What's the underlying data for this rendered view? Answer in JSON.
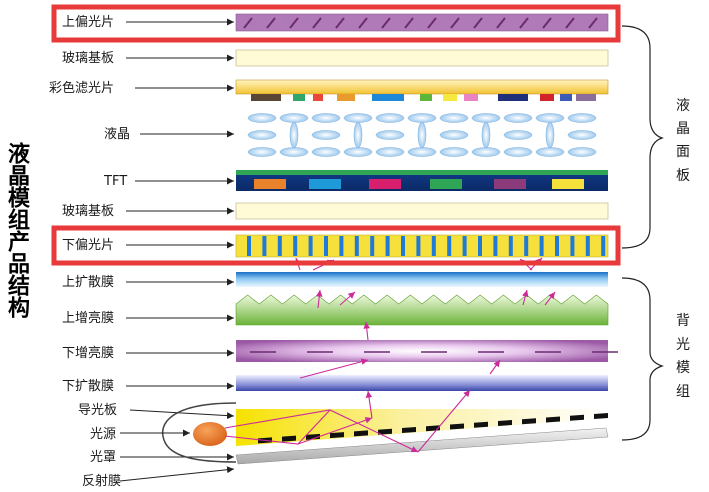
{
  "title": "液晶模组产品结构",
  "layers": [
    {
      "key": "upper_polarizer",
      "label": "上偏光片"
    },
    {
      "key": "glass_top",
      "label": "玻璃基板"
    },
    {
      "key": "color_filter",
      "label": "彩色滤光片"
    },
    {
      "key": "liquid_crystal",
      "label": "液晶"
    },
    {
      "key": "tft",
      "label": "TFT"
    },
    {
      "key": "glass_bottom",
      "label": "玻璃基板"
    },
    {
      "key": "lower_polarizer",
      "label": "下偏光片"
    },
    {
      "key": "upper_diffuser",
      "label": "上扩散膜"
    },
    {
      "key": "upper_brightness",
      "label": "上增亮膜"
    },
    {
      "key": "lower_brightness",
      "label": "下增亮膜"
    },
    {
      "key": "lower_diffuser",
      "label": "下扩散膜"
    },
    {
      "key": "light_guide",
      "label": "导光板"
    },
    {
      "key": "light_source",
      "label": "光源"
    },
    {
      "key": "lamp_cover",
      "label": "光罩"
    },
    {
      "key": "reflector",
      "label": "反射膜"
    }
  ],
  "groups": {
    "lcd_panel": {
      "chars": [
        "液",
        "晶",
        "面",
        "板"
      ]
    },
    "backlight": {
      "chars": [
        "背",
        "光",
        "模",
        "组"
      ]
    }
  },
  "colors": {
    "highlight": "#e83a3a",
    "arrow": "#cc2a9a",
    "upper_polarizer": "#b07ab8",
    "glass": "#fffbd6",
    "diffuser": "#2f8bd8",
    "brightness": "#8cc63f",
    "lower_brightness": "#a569b0",
    "light_source": "#e8731c",
    "cf_strip": [
      "#5a4634",
      "#2fa66a",
      "#e8473a",
      "#e89a2c",
      "#1f87d8",
      "#5cb63a",
      "#f6e83c",
      "#e983c4",
      "#1f2f7a",
      "#d2232a",
      "#3a5bb8",
      "#8b6f9a"
    ],
    "tft_blocks": [
      "#e8832c",
      "#1f9ad8",
      "#d81f6e",
      "#2fa655",
      "#8b3a7a",
      "#f6e03c"
    ]
  }
}
